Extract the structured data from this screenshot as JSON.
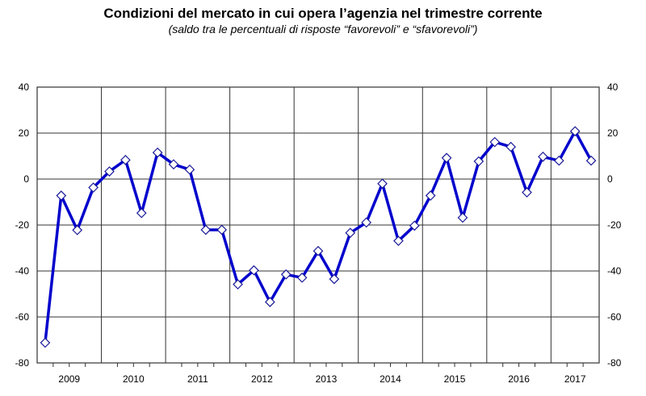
{
  "chart_data": {
    "type": "line",
    "title": "Condizioni del mercato in cui opera l’agenzia nel trimestre corrente",
    "subtitle": "(saldo tra le percentuali di risposte “favorevoli” e “sfavorevoli”)",
    "xlabel": "",
    "ylabel": "",
    "ylim": [
      -80,
      40
    ],
    "yticks": [
      40,
      20,
      0,
      -20,
      -40,
      -60,
      -80
    ],
    "ytick_labels": [
      "40",
      "20",
      "0",
      "-20",
      "-40",
      "-60",
      "-80"
    ],
    "years": [
      "2009",
      "2010",
      "2011",
      "2012",
      "2013",
      "2014",
      "2015",
      "2016",
      "2017"
    ],
    "x_unit": "quarter",
    "x_start": "2009 Q1",
    "grid": true,
    "dual_y_axis": true,
    "marker": "diamond",
    "line_color": "#0000cc",
    "series": [
      {
        "values": [
          -71.2,
          -7.2,
          -22.2,
          -3.7,
          3.3,
          8.3,
          -14.8,
          11.5,
          6.4,
          4.1,
          -22.1,
          -22.1,
          -45.8,
          -39.7,
          -53.5,
          -41.5,
          -42.9,
          -31.3,
          -43.5,
          -23.4,
          -18.9,
          -2.0,
          -26.9,
          -20.3,
          -7.2,
          9.2,
          -16.8,
          7.7,
          16.1,
          14.0,
          -5.8,
          9.7,
          8.0,
          20.8,
          8.0
        ]
      }
    ]
  }
}
